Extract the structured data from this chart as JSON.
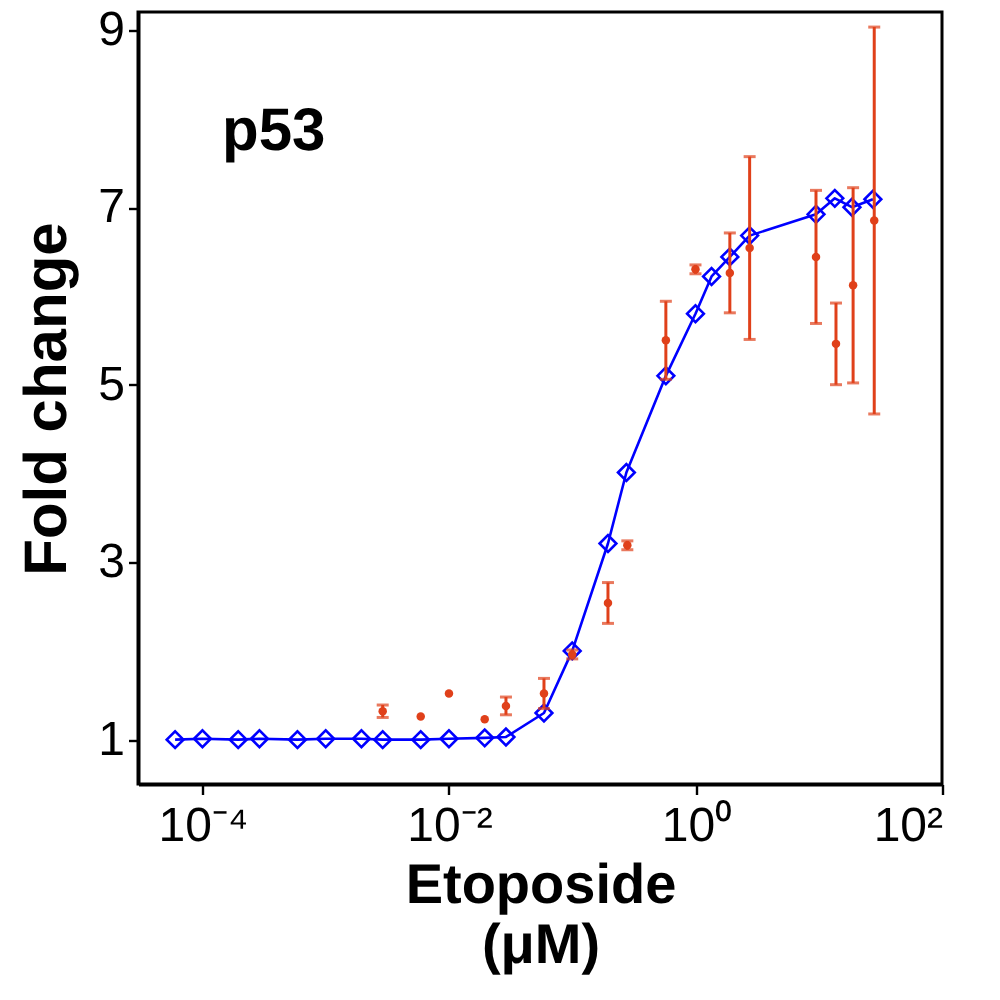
{
  "chart_data": {
    "type": "line",
    "title": "p53",
    "xlabel": "Etoposide\n(μM)",
    "ylabel": "Fold change",
    "log": "x",
    "xlim": [
      3e-05,
      100
    ],
    "xticks": [
      {
        "value": 0.0001,
        "label": "10⁻⁴"
      },
      {
        "value": 0.01,
        "label": "10⁻²"
      },
      {
        "value": 1,
        "label": "10⁰"
      },
      {
        "value": 100,
        "label": "10²"
      }
    ],
    "ylim": [
      0.5,
      9.2
    ],
    "yticks": [
      1,
      3,
      5,
      7,
      9
    ],
    "grid": false,
    "series": [
      {
        "color": "#0000ff",
        "marker": "diamond",
        "line_style": "solid",
        "x": [
          6e-05,
          0.0001,
          0.000195,
          0.00029,
          0.00059,
          0.001,
          0.00195,
          0.0029,
          0.0059,
          0.01,
          0.0195,
          0.029,
          0.059,
          0.1,
          0.195,
          0.275,
          0.575,
          1.0,
          1.35,
          1.9,
          2.75,
          9.5,
          13.5,
          18.6,
          27.5
        ],
        "values": [
          1.0,
          1.01,
          1.0,
          1.01,
          1.0,
          1.01,
          1.01,
          1.0,
          1.0,
          1.01,
          1.02,
          1.03,
          1.3,
          2.0,
          3.21,
          4.01,
          5.1,
          5.8,
          6.22,
          6.44,
          6.68,
          6.92,
          7.1,
          7.0,
          7.09
        ]
      },
      {
        "type": "scatter",
        "color": "#e0401a",
        "marker": "circle",
        "x": [
          0.0029,
          0.0059,
          0.01,
          0.0195,
          0.029,
          0.059,
          0.1,
          0.195,
          0.28,
          0.575,
          1.0,
          1.9,
          2.75,
          9.5,
          13.8,
          19.0,
          28.2
        ],
        "values": [
          1.32,
          1.26,
          1.52,
          1.23,
          1.38,
          1.52,
          1.96,
          2.54,
          3.19,
          5.5,
          6.3,
          6.26,
          6.54,
          6.44,
          5.46,
          6.12,
          6.85
        ],
        "errors": [
          0.07,
          null,
          null,
          null,
          0.1,
          0.17,
          0.05,
          0.23,
          0.05,
          0.44,
          0.05,
          0.45,
          1.03,
          0.75,
          0.46,
          1.1,
          2.18
        ]
      }
    ]
  }
}
